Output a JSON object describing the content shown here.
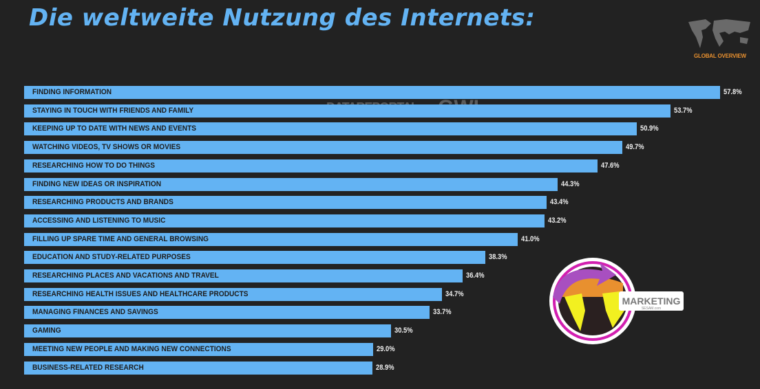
{
  "title": "Die weltweite Nutzung des Internets:",
  "badge": "GLOBAL OVERVIEW",
  "watermark": {
    "left": "DATAREPORTAL",
    "right": "GWI."
  },
  "logo": {
    "text": "MARKETING",
    "sub": "SESAM.com"
  },
  "colors": {
    "bar": "#63b3f3",
    "background": "#222222",
    "badge": "#e8902f"
  },
  "chart_data": {
    "type": "bar",
    "orientation": "horizontal",
    "title": "Die weltweite Nutzung des Internets:",
    "xlim": [
      0,
      57.8
    ],
    "categories": [
      "FINDING INFORMATION",
      "STAYING IN TOUCH WITH FRIENDS AND FAMILY",
      "KEEPING UP TO DATE WITH NEWS AND EVENTS",
      "WATCHING VIDEOS, TV SHOWS OR MOVIES",
      "RESEARCHING HOW TO DO THINGS",
      "FINDING NEW IDEAS OR INSPIRATION",
      "RESEARCHING PRODUCTS AND BRANDS",
      "ACCESSING AND LISTENING TO MUSIC",
      "FILLING UP SPARE TIME AND GENERAL BROWSING",
      "EDUCATION AND STUDY-RELATED PURPOSES",
      "RESEARCHING PLACES AND VACATIONS AND TRAVEL",
      "RESEARCHING HEALTH ISSUES AND HEALTHCARE PRODUCTS",
      "MANAGING FINANCES AND SAVINGS",
      "GAMING",
      "MEETING NEW PEOPLE AND MAKING NEW CONNECTIONS",
      "BUSINESS-RELATED RESEARCH"
    ],
    "values": [
      57.8,
      53.7,
      50.9,
      49.7,
      47.6,
      44.3,
      43.4,
      43.2,
      41.0,
      38.3,
      36.4,
      34.7,
      33.7,
      30.5,
      29.0,
      28.9
    ],
    "value_labels": [
      "57.8%",
      "53.7%",
      "50.9%",
      "49.7%",
      "47.6%",
      "44.3%",
      "43.4%",
      "43.2%",
      "41.0%",
      "38.3%",
      "36.4%",
      "34.7%",
      "33.7%",
      "30.5%",
      "29.0%",
      "28.9%"
    ]
  }
}
